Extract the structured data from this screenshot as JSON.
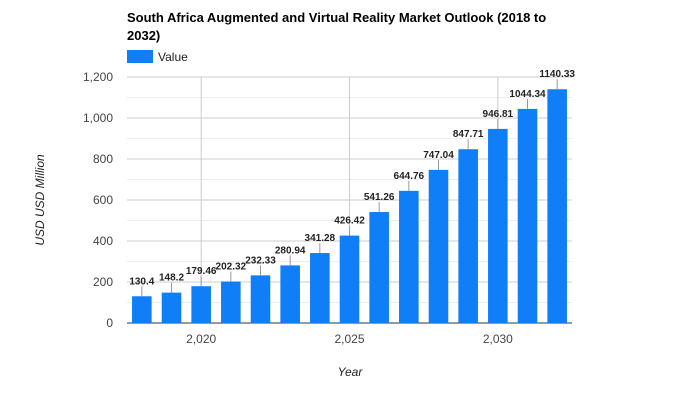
{
  "chart_data": {
    "type": "bar",
    "title_line1": "South Africa Augmented and Virtual Reality Market Outlook (2018 to",
    "title_line2": "2032)",
    "legend": "Value",
    "xlabel": "Year",
    "ylabel": "USD USD Million",
    "color": "#0f7ef7",
    "x": [
      2018,
      2019,
      2020,
      2021,
      2022,
      2023,
      2024,
      2025,
      2026,
      2027,
      2028,
      2029,
      2030,
      2031,
      2032
    ],
    "values": [
      130.4,
      148.2,
      179.46,
      202.32,
      232.33,
      280.94,
      341.28,
      426.42,
      541.26,
      644.76,
      747.04,
      847.71,
      946.81,
      1044.34,
      1140.33
    ],
    "value_labels": [
      "130.4",
      "148.2",
      "179.46",
      "202.32",
      "232.33",
      "280.94",
      "341.28",
      "426.42",
      "541.26",
      "644.76",
      "747.04",
      "847.71",
      "946.81",
      "1044.34",
      "1140.33"
    ],
    "ylim": [
      0,
      1200
    ],
    "y_ticks": [
      0,
      200,
      400,
      600,
      800,
      1000,
      1200
    ],
    "y_tick_labels": [
      "0",
      "200",
      "400",
      "600",
      "800",
      "1,000",
      "1,200"
    ],
    "x_ticks": [
      2020,
      2025,
      2030
    ],
    "x_tick_labels": [
      "2,020",
      "2,025",
      "2,030"
    ],
    "x_range": [
      2017.5,
      2032.5
    ],
    "grid": true,
    "legend_position": "top-left"
  }
}
